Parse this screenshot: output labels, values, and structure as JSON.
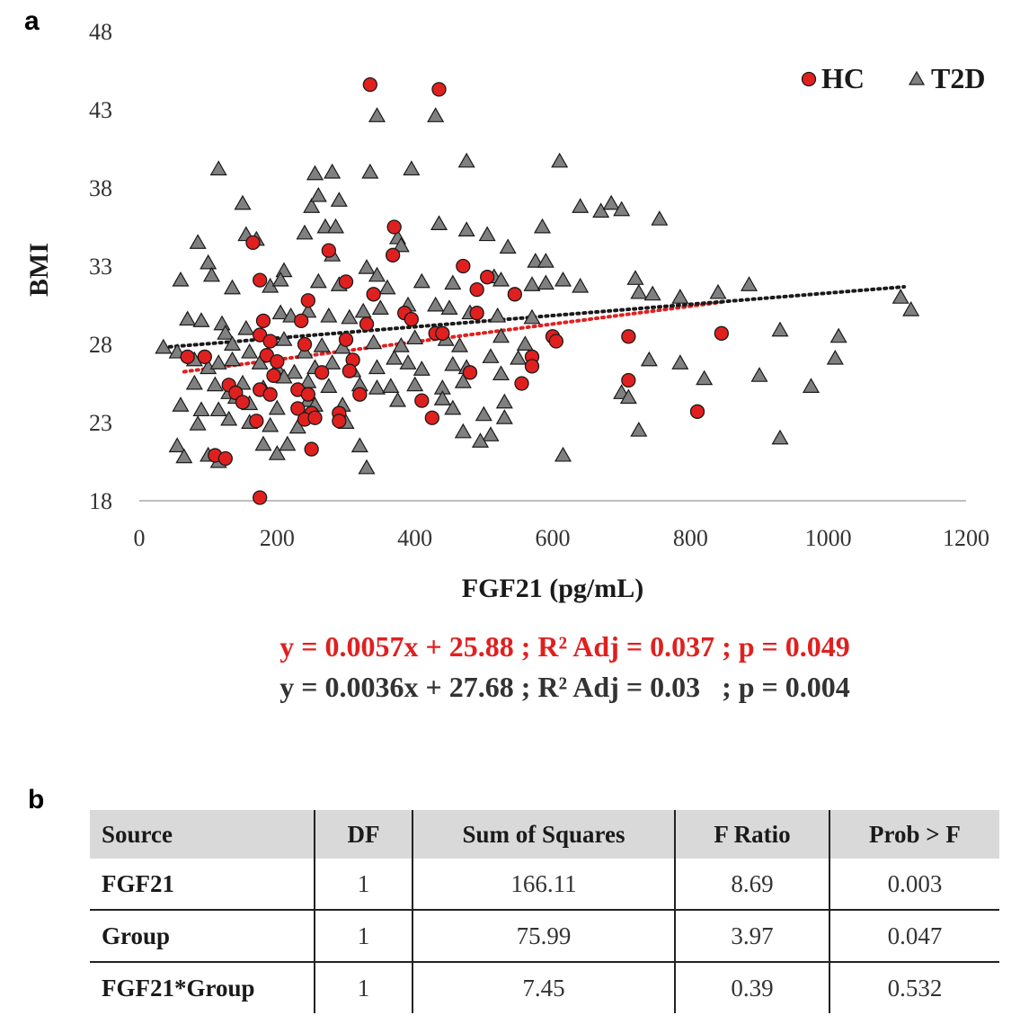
{
  "panel_a_label": "a",
  "panel_b_label": "b",
  "chart_data": {
    "type": "scatter",
    "xlabel": "FGF21 (pg/mL)",
    "ylabel": "BMI",
    "xlim": [
      0,
      1200
    ],
    "ylim": [
      18,
      48
    ],
    "x_ticks": [
      0,
      200,
      400,
      600,
      800,
      1000,
      1200
    ],
    "y_ticks": [
      18,
      23,
      28,
      33,
      38,
      43,
      48
    ],
    "legend_position": "top-right",
    "series": [
      {
        "name": "HC",
        "marker": "circle",
        "color": "#e0201f",
        "points": [
          [
            335,
            44.6
          ],
          [
            435,
            44.3
          ],
          [
            370,
            35.5
          ],
          [
            165,
            34.5
          ],
          [
            275,
            34
          ],
          [
            368,
            33.7
          ],
          [
            470,
            33
          ],
          [
            175,
            32.1
          ],
          [
            300,
            32
          ],
          [
            505,
            32.3
          ],
          [
            490,
            31.5
          ],
          [
            545,
            31.2
          ],
          [
            340,
            31.2
          ],
          [
            245,
            30.8
          ],
          [
            180,
            29.5
          ],
          [
            235,
            29.5
          ],
          [
            330,
            29.3
          ],
          [
            385,
            30
          ],
          [
            395,
            29.6
          ],
          [
            490,
            30
          ],
          [
            175,
            28.6
          ],
          [
            190,
            28.2
          ],
          [
            240,
            28
          ],
          [
            300,
            28.3
          ],
          [
            430,
            28.7
          ],
          [
            440,
            28.7
          ],
          [
            600,
            28.5
          ],
          [
            605,
            28.2
          ],
          [
            710,
            28.5
          ],
          [
            845,
            28.7
          ],
          [
            70,
            27.2
          ],
          [
            95,
            27.2
          ],
          [
            185,
            27.3
          ],
          [
            200,
            26.9
          ],
          [
            310,
            27
          ],
          [
            570,
            27.2
          ],
          [
            195,
            26
          ],
          [
            265,
            26.2
          ],
          [
            305,
            26.3
          ],
          [
            480,
            26.2
          ],
          [
            555,
            25.5
          ],
          [
            570,
            26.6
          ],
          [
            710,
            25.7
          ],
          [
            130,
            25.4
          ],
          [
            175,
            25.1
          ],
          [
            140,
            24.9
          ],
          [
            190,
            24.8
          ],
          [
            230,
            25.1
          ],
          [
            245,
            24.8
          ],
          [
            320,
            24.8
          ],
          [
            150,
            24.3
          ],
          [
            410,
            24.4
          ],
          [
            230,
            23.9
          ],
          [
            250,
            23.6
          ],
          [
            290,
            23.6
          ],
          [
            170,
            23.1
          ],
          [
            240,
            23.2
          ],
          [
            255,
            23.3
          ],
          [
            290,
            23.1
          ],
          [
            425,
            23.3
          ],
          [
            810,
            23.7
          ],
          [
            250,
            21.3
          ],
          [
            110,
            20.9
          ],
          [
            125,
            20.7
          ],
          [
            175,
            18.2
          ]
        ]
      },
      {
        "name": "T2D",
        "marker": "triangle",
        "color": "#808080",
        "points": [
          [
            345,
            42.6
          ],
          [
            430,
            42.6
          ],
          [
            115,
            39.2
          ],
          [
            255,
            38.9
          ],
          [
            280,
            39
          ],
          [
            335,
            39
          ],
          [
            395,
            39.2
          ],
          [
            475,
            39.7
          ],
          [
            610,
            39.7
          ],
          [
            250,
            36.8
          ],
          [
            260,
            37.5
          ],
          [
            290,
            37.2
          ],
          [
            150,
            37
          ],
          [
            640,
            36.8
          ],
          [
            670,
            36.5
          ],
          [
            685,
            37
          ],
          [
            700,
            36.6
          ],
          [
            755,
            36
          ],
          [
            435,
            35.7
          ],
          [
            585,
            35.5
          ],
          [
            155,
            35
          ],
          [
            170,
            34.7
          ],
          [
            240,
            35.1
          ],
          [
            270,
            35.5
          ],
          [
            285,
            35.5
          ],
          [
            375,
            34.8
          ],
          [
            380,
            34.3
          ],
          [
            475,
            35.3
          ],
          [
            505,
            35
          ],
          [
            85,
            34.5
          ],
          [
            280,
            33.7
          ],
          [
            535,
            34.2
          ],
          [
            575,
            33.3
          ],
          [
            590,
            33.3
          ],
          [
            100,
            33.2
          ],
          [
            105,
            32.4
          ],
          [
            210,
            32.7
          ],
          [
            330,
            32.9
          ],
          [
            345,
            32.4
          ],
          [
            515,
            32.3
          ],
          [
            60,
            32.1
          ],
          [
            135,
            31.6
          ],
          [
            190,
            31.7
          ],
          [
            205,
            32.1
          ],
          [
            260,
            32
          ],
          [
            290,
            31.8
          ],
          [
            360,
            31.6
          ],
          [
            410,
            32
          ],
          [
            455,
            31.9
          ],
          [
            525,
            32.1
          ],
          [
            570,
            31.8
          ],
          [
            590,
            31.9
          ],
          [
            615,
            32.1
          ],
          [
            640,
            31.7
          ],
          [
            720,
            32.2
          ],
          [
            725,
            31.3
          ],
          [
            745,
            31.2
          ],
          [
            785,
            31
          ],
          [
            840,
            31.3
          ],
          [
            885,
            31.8
          ],
          [
            1105,
            31
          ],
          [
            1120,
            30.2
          ],
          [
            70,
            29.6
          ],
          [
            90,
            29.5
          ],
          [
            120,
            29.3
          ],
          [
            125,
            28.7
          ],
          [
            155,
            29
          ],
          [
            205,
            30
          ],
          [
            220,
            29.8
          ],
          [
            245,
            30.1
          ],
          [
            275,
            29.8
          ],
          [
            305,
            29.7
          ],
          [
            325,
            30.1
          ],
          [
            350,
            30.3
          ],
          [
            390,
            30.5
          ],
          [
            430,
            30.5
          ],
          [
            450,
            30.3
          ],
          [
            480,
            30
          ],
          [
            520,
            29.8
          ],
          [
            570,
            29.7
          ],
          [
            135,
            28
          ],
          [
            160,
            27.5
          ],
          [
            210,
            28.3
          ],
          [
            240,
            27.5
          ],
          [
            265,
            27.9
          ],
          [
            295,
            27.8
          ],
          [
            340,
            28.1
          ],
          [
            380,
            27.9
          ],
          [
            400,
            28.4
          ],
          [
            445,
            28.3
          ],
          [
            465,
            27.9
          ],
          [
            525,
            28.5
          ],
          [
            560,
            28
          ],
          [
            35,
            27.8
          ],
          [
            55,
            27.5
          ],
          [
            80,
            27
          ],
          [
            100,
            26.5
          ],
          [
            115,
            26.8
          ],
          [
            135,
            27
          ],
          [
            175,
            26.8
          ],
          [
            200,
            26.5
          ],
          [
            225,
            26.2
          ],
          [
            255,
            26.5
          ],
          [
            280,
            26.8
          ],
          [
            310,
            26.3
          ],
          [
            345,
            26.5
          ],
          [
            370,
            27.1
          ],
          [
            390,
            26.8
          ],
          [
            410,
            26.4
          ],
          [
            455,
            26.7
          ],
          [
            475,
            26.5
          ],
          [
            510,
            27.2
          ],
          [
            550,
            27.1
          ],
          [
            740,
            27
          ],
          [
            785,
            26.8
          ],
          [
            80,
            25.5
          ],
          [
            110,
            25.4
          ],
          [
            130,
            24.9
          ],
          [
            150,
            25.5
          ],
          [
            180,
            25.2
          ],
          [
            210,
            25.9
          ],
          [
            245,
            25.6
          ],
          [
            275,
            25.3
          ],
          [
            320,
            25.4
          ],
          [
            345,
            25.2
          ],
          [
            365,
            25.3
          ],
          [
            400,
            25.4
          ],
          [
            440,
            25.2
          ],
          [
            470,
            25.6
          ],
          [
            525,
            26.1
          ],
          [
            700,
            24.9
          ],
          [
            710,
            24.6
          ],
          [
            820,
            25.8
          ],
          [
            900,
            26
          ],
          [
            975,
            25.3
          ],
          [
            1010,
            27.1
          ],
          [
            1015,
            28.5
          ],
          [
            930,
            28.9
          ],
          [
            60,
            24.1
          ],
          [
            90,
            23.8
          ],
          [
            115,
            23.8
          ],
          [
            140,
            24.6
          ],
          [
            160,
            24.2
          ],
          [
            200,
            23.9
          ],
          [
            245,
            24.4
          ],
          [
            255,
            24.1
          ],
          [
            295,
            24.1
          ],
          [
            375,
            24.4
          ],
          [
            440,
            24.5
          ],
          [
            455,
            23.9
          ],
          [
            530,
            24.3
          ],
          [
            85,
            22.9
          ],
          [
            130,
            23.2
          ],
          [
            160,
            23
          ],
          [
            190,
            22.8
          ],
          [
            230,
            22.7
          ],
          [
            300,
            23
          ],
          [
            470,
            22.4
          ],
          [
            500,
            23.5
          ],
          [
            510,
            22.2
          ],
          [
            530,
            23.3
          ],
          [
            725,
            22.5
          ],
          [
            930,
            22
          ],
          [
            55,
            21.5
          ],
          [
            65,
            20.8
          ],
          [
            100,
            20.9
          ],
          [
            115,
            20.5
          ],
          [
            180,
            21.6
          ],
          [
            200,
            21
          ],
          [
            215,
            21.6
          ],
          [
            320,
            21.5
          ],
          [
            495,
            21.8
          ],
          [
            615,
            20.9
          ],
          [
            330,
            20.1
          ]
        ]
      }
    ],
    "trendlines": [
      {
        "series": "HC",
        "color": "#e0201f",
        "slope": 0.0057,
        "intercept": 25.88,
        "x_range": [
          65,
          845
        ]
      },
      {
        "series": "T2D",
        "color": "#1a1a1a",
        "slope": 0.0036,
        "intercept": 27.68,
        "x_range": [
          35,
          1110
        ]
      }
    ],
    "annotations": [
      "y = 0.0057x + 25.88 ; R² Adj = 0.037 ; p = 0.049",
      "y = 0.0036x + 27.68 ; R² Adj = 0.03   ; p = 0.004"
    ]
  },
  "table": {
    "headers": [
      "Source",
      "DF",
      "Sum of Squares",
      "F Ratio",
      "Prob > F"
    ],
    "rows": [
      [
        "FGF21",
        "1",
        "166.11",
        "8.69",
        "0.003"
      ],
      [
        "Group",
        "1",
        "75.99",
        "3.97",
        "0.047"
      ],
      [
        "FGF21*Group",
        "1",
        "7.45",
        "0.39",
        "0.532"
      ]
    ]
  }
}
